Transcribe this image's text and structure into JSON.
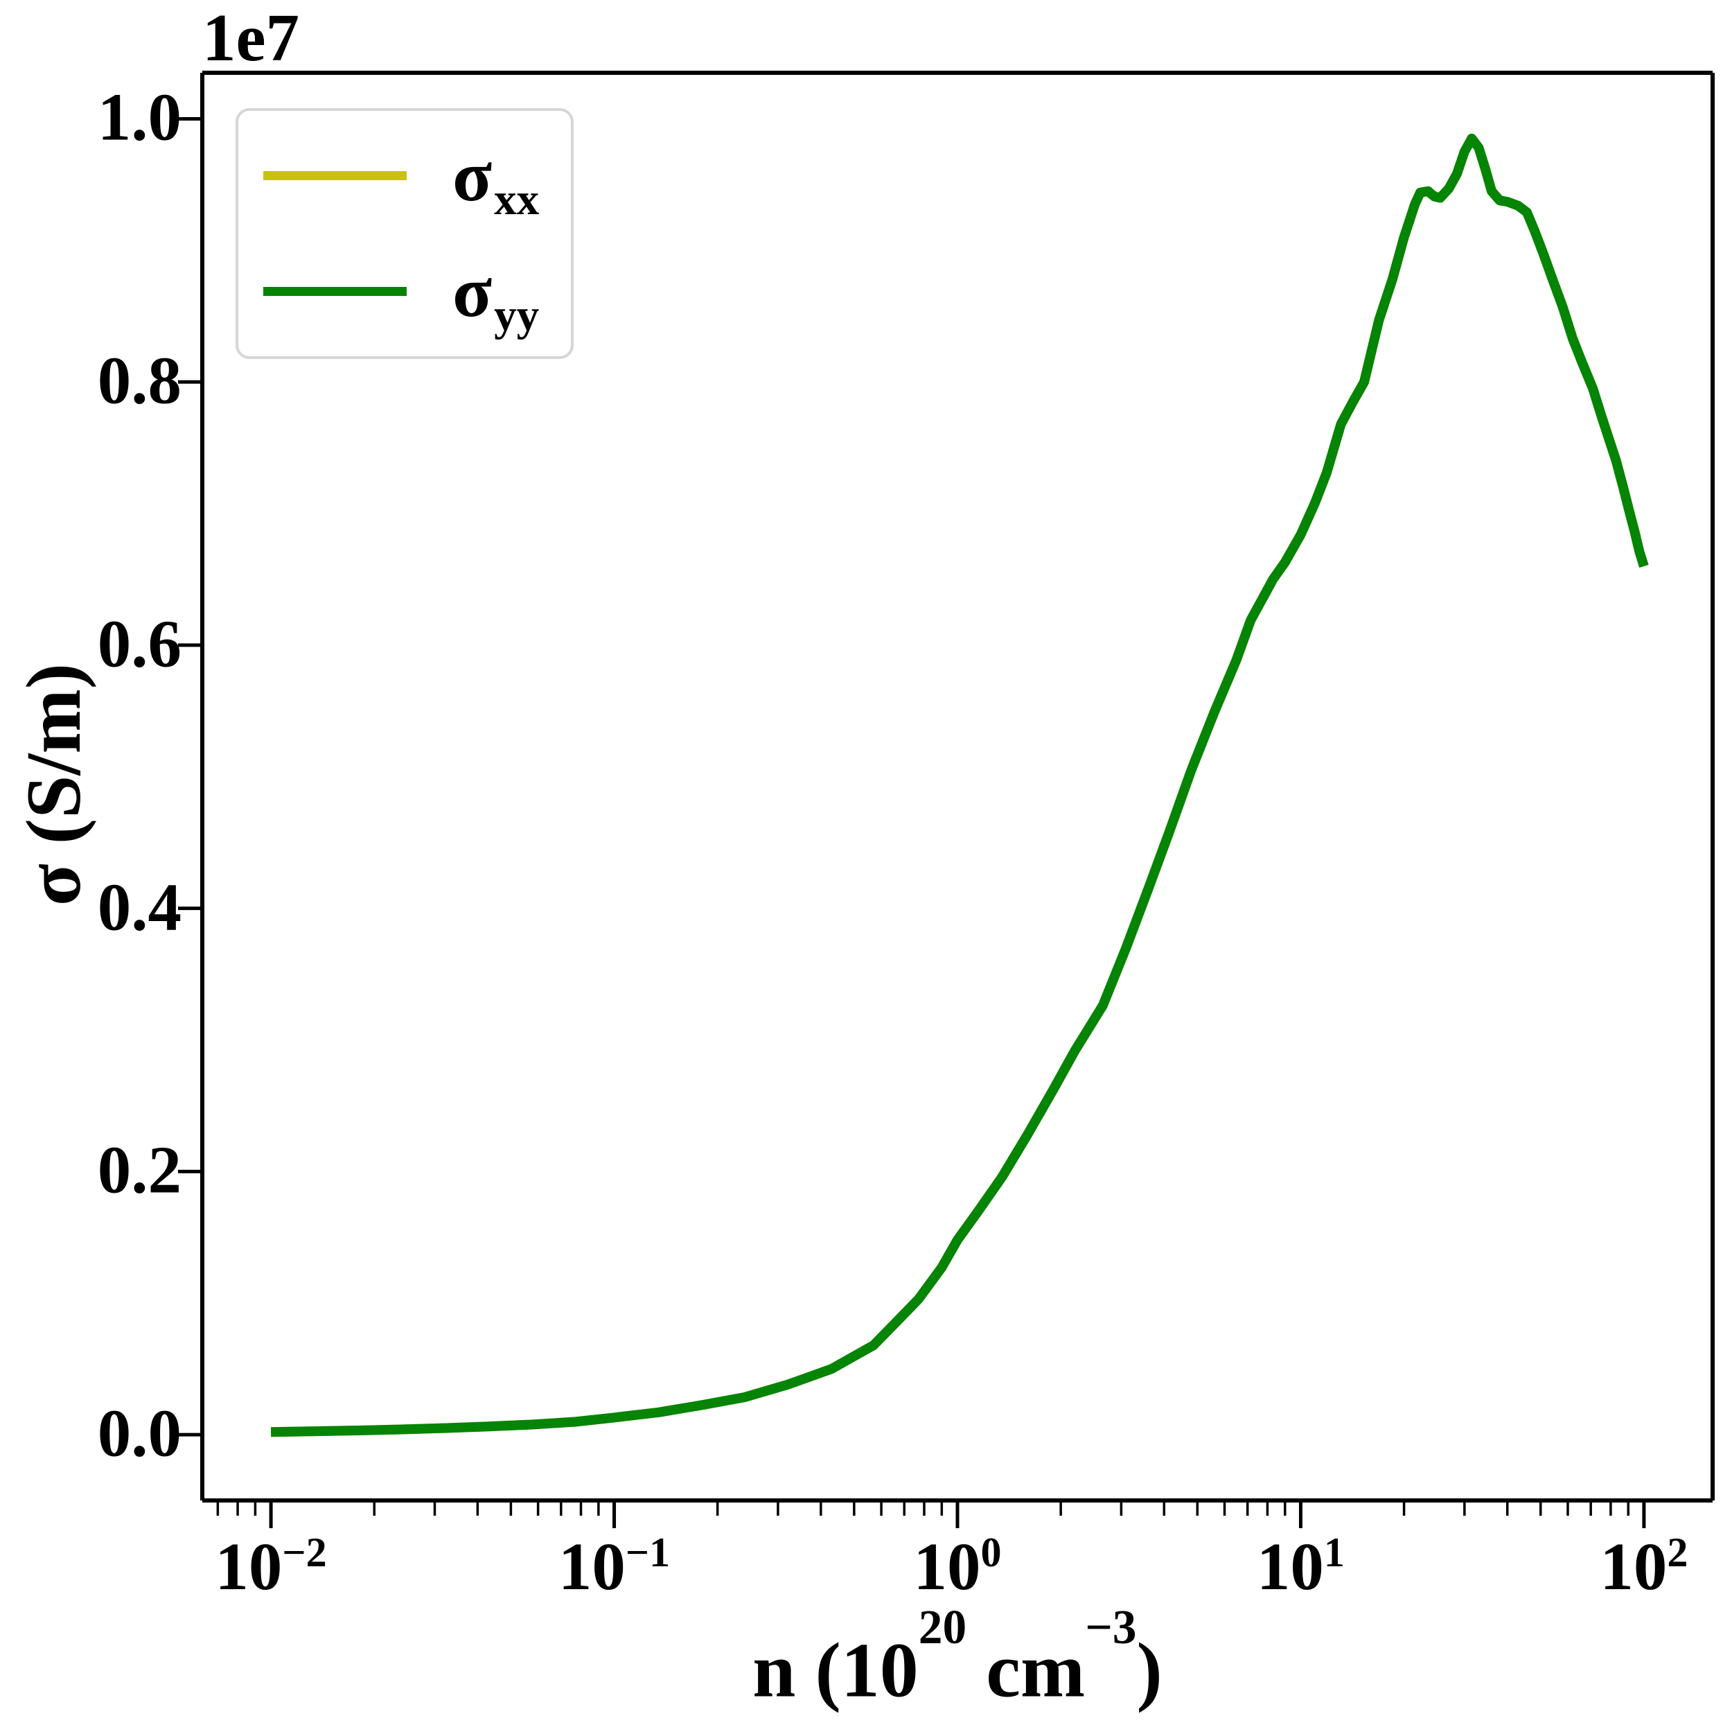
{
  "figure": {
    "offset_label": "1e7",
    "background": "#ffffff",
    "axis_color": "#000000"
  },
  "axes": {
    "ylabel_text": "σ (S/m)",
    "xlabel": {
      "prefix": "n (10",
      "sup1": "20",
      "mid": " cm",
      "sup2": "−3",
      "suffix": ")"
    },
    "x_tick_labels": [
      {
        "base": "10",
        "exp": "−2"
      },
      {
        "base": "10",
        "exp": "−1"
      },
      {
        "base": "10",
        "exp": "0"
      },
      {
        "base": "10",
        "exp": "1"
      },
      {
        "base": "10",
        "exp": "2"
      }
    ],
    "y_tick_labels": [
      "0.0",
      "0.2",
      "0.4",
      "0.6",
      "0.8",
      "1.0"
    ]
  },
  "legend": {
    "entries": [
      {
        "label_base": "σ",
        "label_sub": "xx",
        "color": "#c8c20e"
      },
      {
        "label_base": "σ",
        "label_sub": "yy",
        "color": "#058405"
      }
    ]
  },
  "chart_data": {
    "type": "line",
    "title": "",
    "xlabel": "n (10^20 cm^-3)",
    "ylabel": "σ (S/m)",
    "xscale": "log",
    "grid": false,
    "legend_position": "upper left",
    "y_units": "1e7 S/m",
    "y_offset_factor": "1e7",
    "xlim_log10": [
      -2.2,
      2.2
    ],
    "ylim": [
      -0.05,
      1.035
    ],
    "x_major_ticks": [
      0.01,
      0.1,
      1,
      10,
      100
    ],
    "y_major_ticks": [
      0.0,
      0.2,
      0.4,
      0.6,
      0.8,
      1.0
    ],
    "x": [
      0.01,
      0.0135,
      0.018,
      0.024,
      0.032,
      0.043,
      0.058,
      0.077,
      0.1,
      0.135,
      0.18,
      0.24,
      0.32,
      0.43,
      0.57,
      0.66,
      0.77,
      0.9,
      1.0,
      1.15,
      1.35,
      1.6,
      1.9,
      2.2,
      2.65,
      3.1,
      3.6,
      4.14,
      4.8,
      5.6,
      6.5,
      7.15,
      7.8,
      8.3,
      9.0,
      10,
      11,
      11.9,
      13.1,
      14.2,
      15.3,
      16.9,
      18.5,
      20,
      21.5,
      22.3,
      23.5,
      24.5,
      25.5,
      27,
      28.5,
      30,
      31.5,
      33,
      34.5,
      36,
      38,
      40,
      43,
      45.6,
      48,
      51,
      54,
      58,
      62,
      66,
      71,
      75,
      79,
      83,
      87,
      91,
      94,
      97,
      100
    ],
    "series": [
      {
        "name": "σ_xx",
        "color": "#c8c20e",
        "y": [
          0.002,
          0.0026,
          0.0032,
          0.004,
          0.005,
          0.0062,
          0.0077,
          0.0098,
          0.013,
          0.017,
          0.0225,
          0.0285,
          0.038,
          0.05,
          0.068,
          0.085,
          0.103,
          0.127,
          0.148,
          0.17,
          0.196,
          0.228,
          0.262,
          0.292,
          0.326,
          0.37,
          0.415,
          0.458,
          0.505,
          0.549,
          0.589,
          0.619,
          0.637,
          0.65,
          0.663,
          0.684,
          0.708,
          0.731,
          0.768,
          0.785,
          0.8,
          0.847,
          0.878,
          0.91,
          0.935,
          0.944,
          0.945,
          0.941,
          0.94,
          0.947,
          0.958,
          0.975,
          0.985,
          0.978,
          0.962,
          0.945,
          0.938,
          0.937,
          0.934,
          0.929,
          0.915,
          0.897,
          0.879,
          0.857,
          0.833,
          0.815,
          0.795,
          0.775,
          0.757,
          0.74,
          0.72,
          0.7,
          0.686,
          0.671,
          0.66
        ]
      },
      {
        "name": "σ_yy",
        "color": "#058405",
        "y": [
          0.002,
          0.0026,
          0.0032,
          0.004,
          0.005,
          0.0062,
          0.0077,
          0.0098,
          0.013,
          0.017,
          0.0225,
          0.0285,
          0.038,
          0.05,
          0.068,
          0.085,
          0.103,
          0.127,
          0.148,
          0.17,
          0.196,
          0.228,
          0.262,
          0.292,
          0.326,
          0.37,
          0.415,
          0.458,
          0.505,
          0.549,
          0.589,
          0.619,
          0.637,
          0.65,
          0.663,
          0.684,
          0.708,
          0.731,
          0.768,
          0.785,
          0.8,
          0.847,
          0.878,
          0.91,
          0.935,
          0.944,
          0.945,
          0.941,
          0.94,
          0.947,
          0.958,
          0.975,
          0.985,
          0.978,
          0.962,
          0.945,
          0.938,
          0.937,
          0.934,
          0.929,
          0.915,
          0.897,
          0.879,
          0.857,
          0.833,
          0.815,
          0.795,
          0.775,
          0.757,
          0.74,
          0.72,
          0.7,
          0.686,
          0.671,
          0.66
        ]
      }
    ]
  }
}
